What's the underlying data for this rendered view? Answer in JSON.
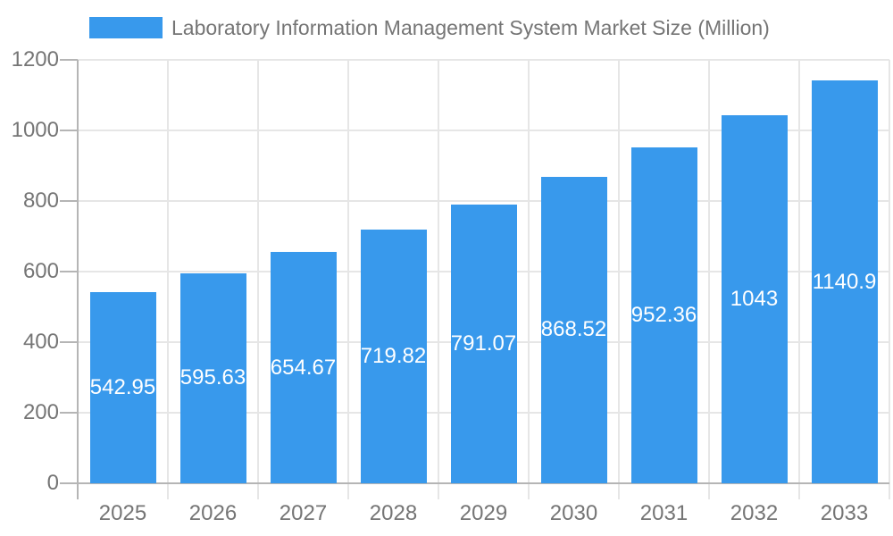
{
  "chart_data": {
    "type": "bar",
    "title": "Laboratory Information Management System Market Size (Million)",
    "categories": [
      "2025",
      "2026",
      "2027",
      "2028",
      "2029",
      "2030",
      "2031",
      "2032",
      "2033"
    ],
    "values": [
      542.95,
      595.63,
      654.67,
      719.82,
      791.07,
      868.52,
      952.36,
      1043,
      1140.9
    ],
    "xlabel": "",
    "ylabel": "",
    "ylim": [
      0,
      1200
    ],
    "yticks": [
      0,
      200,
      400,
      600,
      800,
      1000,
      1200
    ],
    "grid": true,
    "legend_position": "top-center",
    "value_labels": "inside-center",
    "colors": {
      "bar": "#3899EC",
      "grid": "#e6e6e6",
      "axis": "#b5b5b5",
      "tick_label": "#757575",
      "title": "#757575",
      "bar_label": "#ffffff",
      "background": "#ffffff"
    }
  }
}
